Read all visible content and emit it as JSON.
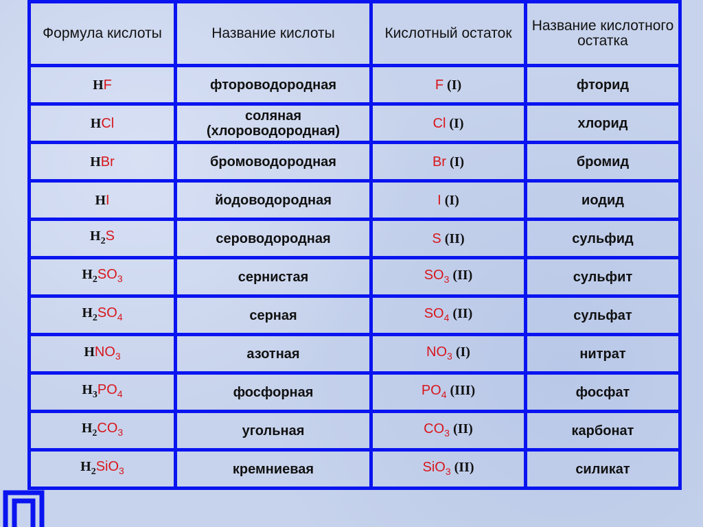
{
  "table": {
    "header": [
      "Формула кислоты",
      "Название кислоты",
      "Кислотный остаток",
      "Название кислотного остатка"
    ],
    "rows": [
      [
        [
          {
            "text": "H"
          },
          {
            "text": "F",
            "color": "#d8161b"
          }
        ],
        "фтороводородная",
        [
          {
            "text": "F",
            "color": "#d8161b"
          },
          {
            "text": " (I)"
          }
        ],
        "фторид"
      ],
      [
        [
          {
            "text": "H"
          },
          {
            "text": "Cl",
            "color": "#d8161b"
          }
        ],
        "соляная (хлороводородная)",
        [
          {
            "text": "Cl",
            "color": "#d8161b"
          },
          {
            "text": " (I)"
          }
        ],
        "хлорид"
      ],
      [
        [
          {
            "text": "H"
          },
          {
            "text": "Br",
            "color": "#d8161b"
          }
        ],
        "бромоводородная",
        [
          {
            "text": "Br",
            "color": "#d8161b"
          },
          {
            "text": " (I)"
          }
        ],
        "бромид"
      ],
      [
        [
          {
            "text": "H"
          },
          {
            "text": "I",
            "color": "#d8161b"
          }
        ],
        "йодоводородная",
        [
          {
            "text": "I",
            "color": "#d8161b"
          },
          {
            "text": " (I)"
          }
        ],
        "иодид"
      ],
      [
        [
          {
            "text": "H"
          },
          {
            "text": "2",
            "sub": true
          },
          {
            "text": "S",
            "color": "#d8161b"
          }
        ],
        "сероводородная",
        [
          {
            "text": "S",
            "color": "#d8161b"
          },
          {
            "text": " (II)"
          }
        ],
        "сульфид"
      ],
      [
        [
          {
            "text": "H"
          },
          {
            "text": "2",
            "sub": true
          },
          {
            "text": "SO",
            "color": "#d8161b"
          },
          {
            "text": "3",
            "sub": true,
            "color": "#d8161b"
          }
        ],
        "сернистая",
        [
          {
            "text": "SO",
            "color": "#d8161b"
          },
          {
            "text": "3",
            "sub": true,
            "color": "#d8161b"
          },
          {
            "text": " (II)"
          }
        ],
        "сульфит"
      ],
      [
        [
          {
            "text": "H"
          },
          {
            "text": "2",
            "sub": true
          },
          {
            "text": "SO",
            "color": "#d8161b"
          },
          {
            "text": "4",
            "sub": true,
            "color": "#d8161b"
          }
        ],
        "серная",
        [
          {
            "text": "SO",
            "color": "#d8161b"
          },
          {
            "text": "4",
            "sub": true,
            "color": "#d8161b"
          },
          {
            "text": " (II)"
          }
        ],
        "сульфат"
      ],
      [
        [
          {
            "text": "H"
          },
          {
            "text": "NO",
            "color": "#d8161b"
          },
          {
            "text": "3",
            "sub": true,
            "color": "#d8161b"
          }
        ],
        "азотная",
        [
          {
            "text": "NO",
            "color": "#d8161b"
          },
          {
            "text": "3",
            "sub": true,
            "color": "#d8161b"
          },
          {
            "text": " (I)"
          }
        ],
        "нитрат"
      ],
      [
        [
          {
            "text": "H"
          },
          {
            "text": "3",
            "sub": true
          },
          {
            "text": "PO",
            "color": "#d8161b"
          },
          {
            "text": "4",
            "sub": true,
            "color": "#d8161b"
          }
        ],
        "фосфорная",
        [
          {
            "text": "PO",
            "color": "#d8161b"
          },
          {
            "text": "4",
            "sub": true,
            "color": "#d8161b"
          },
          {
            "text": " (III)"
          }
        ],
        "фосфат"
      ],
      [
        [
          {
            "text": "H"
          },
          {
            "text": "2",
            "sub": true
          },
          {
            "text": "CO",
            "color": "#d8161b"
          },
          {
            "text": "3",
            "sub": true,
            "color": "#d8161b"
          }
        ],
        "угольная",
        [
          {
            "text": "CO",
            "color": "#d8161b"
          },
          {
            "text": "3",
            "sub": true,
            "color": "#d8161b"
          },
          {
            "text": " (II)"
          }
        ],
        "карбонат"
      ],
      [
        [
          {
            "text": "H"
          },
          {
            "text": "2",
            "sub": true
          },
          {
            "text": "SiO",
            "color": "#d8161b"
          },
          {
            "text": "3",
            "sub": true,
            "color": "#d8161b"
          }
        ],
        "кремниевая",
        [
          {
            "text": "SiO",
            "color": "#d8161b"
          },
          {
            "text": "3",
            "sub": true,
            "color": "#d8161b"
          },
          {
            "text": " (II)"
          }
        ],
        "силикат"
      ]
    ]
  }
}
